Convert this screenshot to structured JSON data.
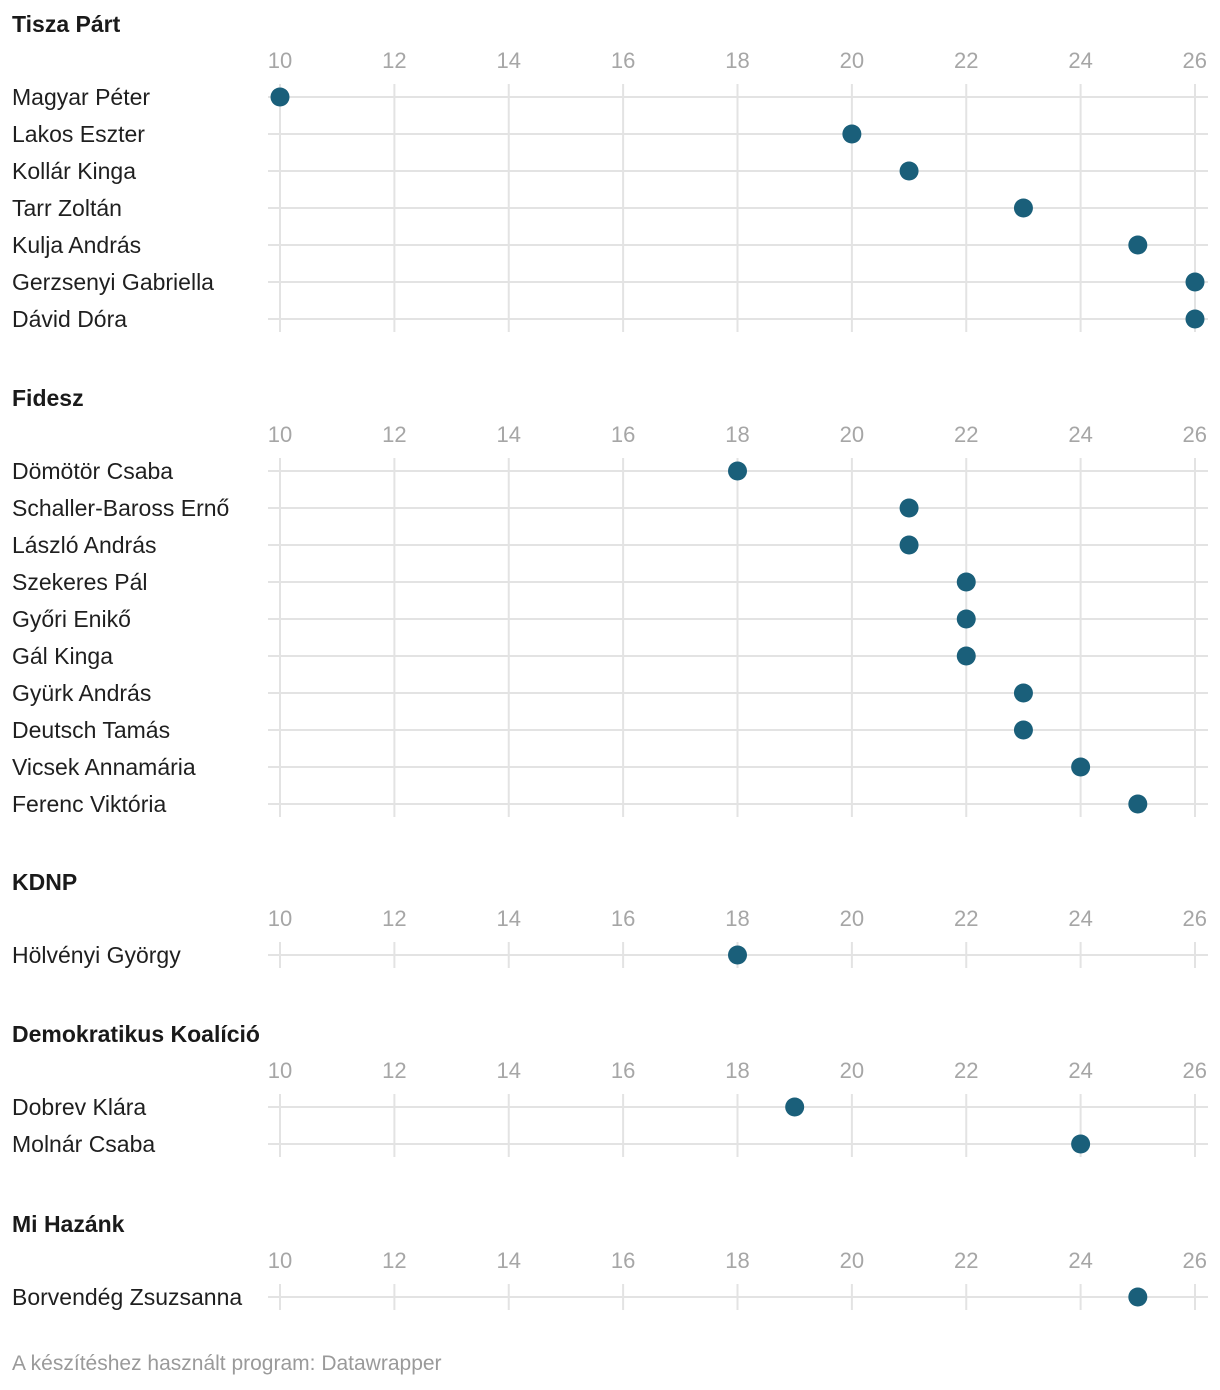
{
  "chart_data": {
    "type": "scatter",
    "subtype": "dot-plot",
    "x_ticks": [
      10,
      12,
      14,
      16,
      18,
      20,
      22,
      24,
      26
    ],
    "xlim": [
      10,
      26
    ],
    "dot_color": "#1a5f7a",
    "grid": true,
    "panels": [
      {
        "title": "Tisza Párt",
        "items": [
          {
            "name": "Magyar Péter",
            "value": 10
          },
          {
            "name": "Lakos Eszter",
            "value": 20
          },
          {
            "name": "Kollár Kinga",
            "value": 21
          },
          {
            "name": "Tarr Zoltán",
            "value": 23
          },
          {
            "name": "Kulja András",
            "value": 25
          },
          {
            "name": "Gerzsenyi Gabriella",
            "value": 26
          },
          {
            "name": "Dávid Dóra",
            "value": 26
          }
        ]
      },
      {
        "title": "Fidesz",
        "items": [
          {
            "name": "Dömötör Csaba",
            "value": 18
          },
          {
            "name": "Schaller-Baross Ernő",
            "value": 21
          },
          {
            "name": "László András",
            "value": 21
          },
          {
            "name": "Szekeres Pál",
            "value": 22
          },
          {
            "name": "Győri Enikő",
            "value": 22
          },
          {
            "name": "Gál Kinga",
            "value": 22
          },
          {
            "name": "Gyürk András",
            "value": 23
          },
          {
            "name": "Deutsch Tamás",
            "value": 23
          },
          {
            "name": "Vicsek Annamária",
            "value": 24
          },
          {
            "name": "Ferenc Viktória",
            "value": 25
          }
        ]
      },
      {
        "title": "KDNP",
        "items": [
          {
            "name": "Hölvényi György",
            "value": 18
          }
        ]
      },
      {
        "title": "Demokratikus Koalíció",
        "items": [
          {
            "name": "Dobrev Klára",
            "value": 19
          },
          {
            "name": "Molnár Csaba",
            "value": 24
          }
        ]
      },
      {
        "title": "Mi Hazánk",
        "items": [
          {
            "name": "Borvendég Zsuzsanna",
            "value": 25
          }
        ]
      }
    ]
  },
  "footer": {
    "credit": "A készítéshez használt program: Datawrapper"
  }
}
